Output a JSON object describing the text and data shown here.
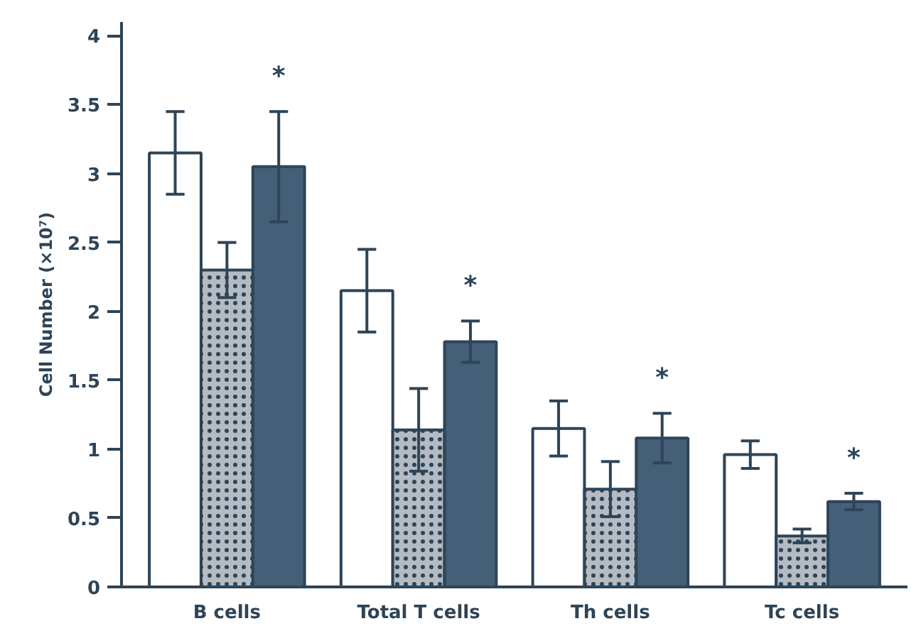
{
  "chart_data": {
    "type": "bar",
    "ylabel": "Cell Number (×10⁷)",
    "categories": [
      "B cells",
      "Total T cells",
      "Th cells",
      "Tc cells"
    ],
    "series": [
      {
        "color": "#ffffff",
        "values": [
          3.15,
          2.15,
          1.15,
          0.96
        ],
        "errors": [
          0.3,
          0.3,
          0.2,
          0.1
        ]
      },
      {
        "color": "#b4bbc3",
        "values": [
          2.3,
          1.14,
          0.71,
          0.37
        ],
        "errors": [
          0.2,
          0.3,
          0.2,
          0.05
        ]
      },
      {
        "color": "#445f78",
        "values": [
          3.05,
          1.78,
          1.08,
          0.62
        ],
        "errors": [
          0.4,
          0.15,
          0.18,
          0.06
        ]
      }
    ],
    "annotations": [
      "*",
      "*",
      "*",
      "*"
    ],
    "ylim": [
      0,
      4.1
    ],
    "yticks": [
      0,
      0.5,
      1,
      1.5,
      2,
      2.5,
      3,
      3.5,
      4
    ],
    "grid": false
  }
}
